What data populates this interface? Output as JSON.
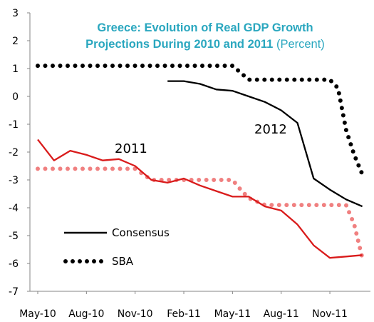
{
  "chart_data": {
    "type": "line",
    "title_line1": "Greece: Evolution of Real GDP Growth",
    "title_line2": "Projections During 2010 and 2011",
    "title_unit": "(Percent)",
    "title_color": "#2aa7bf",
    "ylim": [
      -7,
      3
    ],
    "y_ticks": [
      "3",
      "2",
      "1",
      "0",
      "-1",
      "-2",
      "-3",
      "-4",
      "-5",
      "-6",
      "-7"
    ],
    "x_ticks": [
      "May-10",
      "Aug-10",
      "Nov-10",
      "Feb-11",
      "May-11",
      "Aug-11",
      "Nov-11"
    ],
    "grid": false,
    "legend": [
      {
        "label": "Consensus",
        "style": "solid",
        "color": "#000000"
      },
      {
        "label": "SBA",
        "style": "dotted",
        "color": "#000000"
      }
    ],
    "annotations": [
      {
        "text": "2011"
      },
      {
        "text": "2012"
      }
    ],
    "series": [
      {
        "year": "2011",
        "kind": "Consensus",
        "style": "solid",
        "color": "#d91b1b",
        "x": [
          0,
          1,
          2,
          3,
          4,
          5,
          6,
          7,
          8,
          9,
          10,
          11,
          12,
          13,
          14,
          15,
          16,
          17,
          18,
          19,
          20
        ],
        "y": [
          -1.55,
          -2.3,
          -1.95,
          -2.1,
          -2.3,
          -2.25,
          -2.5,
          -3.0,
          -3.1,
          -2.95,
          -3.2,
          -3.4,
          -3.6,
          -3.6,
          -3.95,
          -4.1,
          -4.6,
          -5.35,
          -5.8,
          -5.75,
          -5.7
        ]
      },
      {
        "year": "2011",
        "kind": "SBA",
        "style": "dotted",
        "color": "#f08080",
        "x": [
          0,
          1,
          2,
          3,
          4,
          5,
          6,
          7,
          8,
          9,
          10,
          11,
          12,
          12.5,
          13,
          14,
          15,
          16,
          17,
          18,
          19,
          19.5,
          20
        ],
        "y": [
          -2.6,
          -2.6,
          -2.6,
          -2.6,
          -2.6,
          -2.6,
          -2.6,
          -3.0,
          -3.0,
          -3.0,
          -3.0,
          -3.0,
          -3.0,
          -3.35,
          -3.65,
          -3.9,
          -3.9,
          -3.9,
          -3.9,
          -3.9,
          -3.9,
          -4.6,
          -5.8
        ]
      },
      {
        "year": "2012",
        "kind": "Consensus",
        "style": "solid",
        "color": "#000000",
        "x": [
          8,
          9,
          10,
          11,
          12,
          13,
          14,
          15,
          16,
          17,
          18,
          19,
          20
        ],
        "y": [
          0.55,
          0.55,
          0.45,
          0.25,
          0.2,
          0.0,
          -0.2,
          -0.5,
          -0.95,
          -2.95,
          -3.35,
          -3.7,
          -3.95
        ]
      },
      {
        "year": "2012",
        "kind": "SBA",
        "style": "dotted",
        "color": "#000000",
        "x": [
          0,
          1,
          2,
          3,
          4,
          5,
          6,
          7,
          8,
          9,
          10,
          11,
          12,
          13,
          14,
          15,
          16,
          17,
          18,
          18.5,
          19,
          19.5,
          20
        ],
        "y": [
          1.1,
          1.1,
          1.1,
          1.1,
          1.1,
          1.1,
          1.1,
          1.1,
          1.1,
          1.1,
          1.1,
          1.1,
          1.1,
          0.6,
          0.6,
          0.6,
          0.6,
          0.6,
          0.6,
          0.3,
          -1.2,
          -2.1,
          -2.8
        ]
      }
    ]
  }
}
